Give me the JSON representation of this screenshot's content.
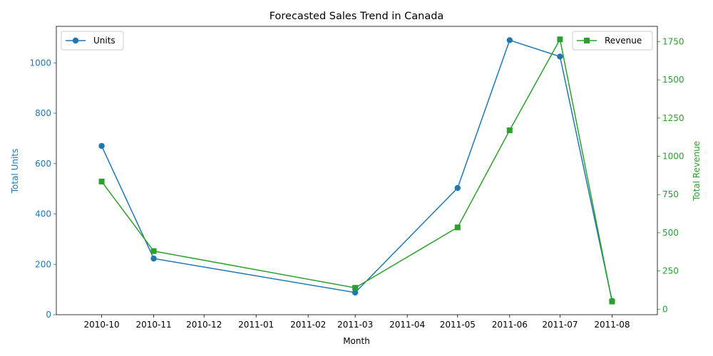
{
  "chart_data": {
    "type": "line",
    "title": "Forecasted Sales Trend in Canada",
    "xlabel": "Month",
    "x": [
      "2010-10-01",
      "2010-11-01",
      "2011-03-01",
      "2011-05-01",
      "2011-06-01",
      "2011-07-01",
      "2011-08-01"
    ],
    "x_ticks": [
      "2010-10",
      "2010-11",
      "2010-12",
      "2011-01",
      "2011-02",
      "2011-03",
      "2011-04",
      "2011-05",
      "2011-06",
      "2011-07",
      "2011-08"
    ],
    "x_tick_dates": [
      "2010-10-01",
      "2010-11-01",
      "2010-12-01",
      "2011-01-01",
      "2011-02-01",
      "2011-03-01",
      "2011-04-01",
      "2011-05-01",
      "2011-06-01",
      "2011-07-01",
      "2011-08-01"
    ],
    "xlim": [
      "2010-09-04",
      "2011-08-28"
    ],
    "grid": false,
    "series": [
      {
        "name": "Units",
        "axis": "left",
        "color": "#1f77b4",
        "marker": "circle",
        "values": [
          670,
          223,
          88,
          503,
          1090,
          1025,
          55
        ]
      },
      {
        "name": "Revenue",
        "axis": "right",
        "color": "#2ca02c",
        "marker": "square",
        "values": [
          835,
          380,
          140,
          535,
          1170,
          1765,
          50
        ]
      }
    ],
    "y_left": {
      "label": "Total Units",
      "color": "#1f77b4",
      "lim": [
        0,
        1145
      ],
      "ticks": [
        0,
        200,
        400,
        600,
        800,
        1000
      ]
    },
    "y_right": {
      "label": "Total Revenue",
      "color": "#2ca02c",
      "lim": [
        -36,
        1850
      ],
      "ticks": [
        0,
        250,
        500,
        750,
        1000,
        1250,
        1500,
        1750
      ]
    },
    "legends": [
      {
        "series": "Units",
        "placement": "top-left"
      },
      {
        "series": "Revenue",
        "placement": "top-right"
      }
    ]
  }
}
